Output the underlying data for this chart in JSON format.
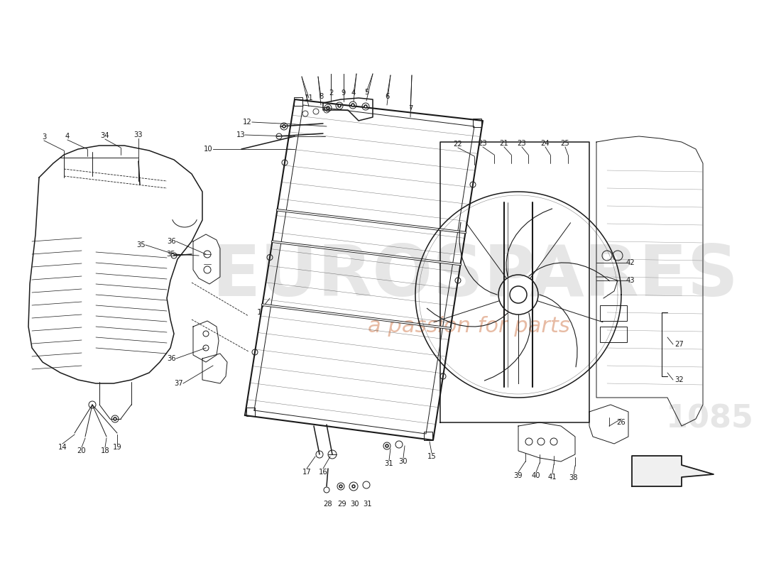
{
  "background_color": "#ffffff",
  "line_color": "#1a1a1a",
  "label_color": "#1a1a1a",
  "lw_main": 1.1,
  "lw_thin": 0.7,
  "label_fs": 7.2,
  "watermark_text1": "EUROSPARES",
  "watermark_text2": "a passion for parts",
  "watermark_number": "1085",
  "watermark_gray": "#c8c8c8",
  "watermark_orange": "#d4845a"
}
